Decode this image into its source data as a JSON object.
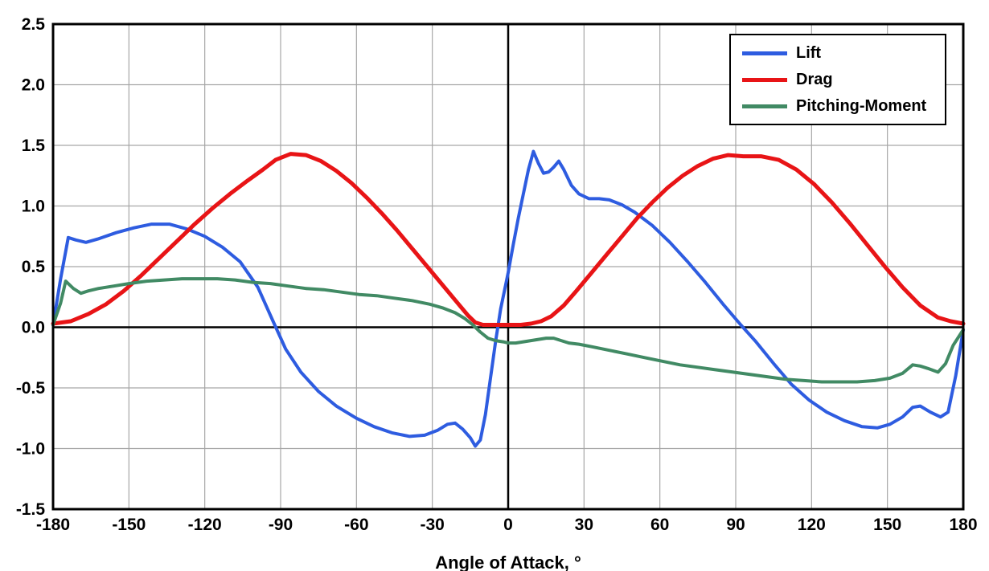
{
  "figure": {
    "background": "#ffffff"
  },
  "colors": {
    "grid": "#a6a6a6",
    "axis": "#000000",
    "border": "#000000",
    "tick_label": "#000000"
  },
  "chart_data": {
    "type": "line",
    "title": "",
    "xlabel": "Angle of Attack, °",
    "ylabel": "",
    "xlim": [
      -180,
      180
    ],
    "ylim": [
      -1.5,
      2.5
    ],
    "grid": true,
    "legend_position": "top-right",
    "zero_axis_lines": true,
    "xticks": [
      -180,
      -150,
      -120,
      -90,
      -60,
      -30,
      0,
      30,
      60,
      90,
      120,
      150,
      180
    ],
    "xtick_labels": [
      "-180",
      "-150",
      "-120",
      "-90",
      "-60",
      "-30",
      "0",
      "30",
      "60",
      "90",
      "120",
      "150",
      "180"
    ],
    "yticks": [
      2.5,
      2.0,
      1.5,
      1.0,
      0.5,
      0.0,
      -0.5,
      -1.0,
      -1.5
    ],
    "ytick_labels": [
      "2.5",
      "2.0",
      "1.5",
      "1.0",
      "0.5",
      "0.0",
      "-0.5",
      "-1.0",
      "-1.5"
    ],
    "series": [
      {
        "name": "Lift",
        "color": "#2e5ce0",
        "line_width": 4,
        "x": [
          -180,
          -177,
          -174,
          -171,
          -167,
          -162,
          -155,
          -148,
          -141,
          -134,
          -127,
          -120,
          -113,
          -106,
          -99,
          -93,
          -88,
          -82,
          -75,
          -68,
          -60,
          -53,
          -46,
          -39,
          -33,
          -28,
          -24,
          -21,
          -18,
          -15,
          -13,
          -11,
          -9,
          -7,
          -5,
          -3,
          -1,
          0,
          2,
          4,
          6,
          8,
          10,
          12,
          14,
          16,
          18,
          20,
          22,
          25,
          28,
          32,
          36,
          40,
          45,
          50,
          57,
          64,
          71,
          78,
          85,
          92,
          98,
          105,
          112,
          119,
          126,
          133,
          140,
          146,
          151,
          156,
          160,
          163,
          167,
          171,
          174,
          177,
          180
        ],
        "y": [
          0.02,
          0.4,
          0.74,
          0.72,
          0.7,
          0.73,
          0.78,
          0.82,
          0.85,
          0.85,
          0.81,
          0.75,
          0.66,
          0.54,
          0.33,
          0.05,
          -0.18,
          -0.37,
          -0.53,
          -0.65,
          -0.75,
          -0.82,
          -0.87,
          -0.9,
          -0.89,
          -0.85,
          -0.8,
          -0.79,
          -0.84,
          -0.91,
          -0.98,
          -0.93,
          -0.72,
          -0.42,
          -0.12,
          0.15,
          0.35,
          0.45,
          0.68,
          0.9,
          1.1,
          1.3,
          1.45,
          1.35,
          1.27,
          1.28,
          1.32,
          1.37,
          1.3,
          1.17,
          1.1,
          1.06,
          1.06,
          1.05,
          1.01,
          0.95,
          0.84,
          0.7,
          0.54,
          0.37,
          0.19,
          0.02,
          -0.12,
          -0.3,
          -0.47,
          -0.6,
          -0.7,
          -0.77,
          -0.82,
          -0.83,
          -0.8,
          -0.74,
          -0.66,
          -0.65,
          -0.7,
          -0.74,
          -0.7,
          -0.4,
          -0.02
        ]
      },
      {
        "name": "Drag",
        "color": "#e81416",
        "line_width": 5,
        "x": [
          -180,
          -173,
          -166,
          -159,
          -152,
          -145,
          -138,
          -131,
          -124,
          -117,
          -110,
          -103,
          -97,
          -92,
          -86,
          -80,
          -74,
          -68,
          -62,
          -56,
          -50,
          -44,
          -38,
          -32,
          -26,
          -20,
          -16,
          -13,
          -10,
          -5,
          0,
          5,
          9,
          13,
          17,
          22,
          27,
          33,
          39,
          45,
          51,
          57,
          63,
          69,
          75,
          81,
          87,
          93,
          100,
          107,
          114,
          121,
          128,
          135,
          142,
          149,
          156,
          163,
          170,
          175,
          180
        ],
        "y": [
          0.03,
          0.05,
          0.11,
          0.19,
          0.3,
          0.43,
          0.57,
          0.71,
          0.85,
          0.98,
          1.1,
          1.21,
          1.3,
          1.38,
          1.43,
          1.42,
          1.37,
          1.29,
          1.19,
          1.07,
          0.94,
          0.8,
          0.65,
          0.5,
          0.35,
          0.2,
          0.1,
          0.04,
          0.02,
          0.02,
          0.02,
          0.02,
          0.03,
          0.05,
          0.09,
          0.18,
          0.3,
          0.45,
          0.6,
          0.75,
          0.9,
          1.03,
          1.15,
          1.25,
          1.33,
          1.39,
          1.42,
          1.41,
          1.41,
          1.38,
          1.3,
          1.18,
          1.03,
          0.86,
          0.68,
          0.5,
          0.33,
          0.18,
          0.08,
          0.05,
          0.03
        ]
      },
      {
        "name": "Pitching-Moment",
        "color": "#418a64",
        "line_width": 4,
        "x": [
          -180,
          -177,
          -175,
          -172,
          -169,
          -166,
          -162,
          -156,
          -150,
          -143,
          -136,
          -129,
          -122,
          -115,
          -108,
          -101,
          -94,
          -87,
          -80,
          -73,
          -66,
          -59,
          -52,
          -45,
          -38,
          -31,
          -26,
          -21,
          -17,
          -14,
          -11,
          -8,
          -5,
          -2,
          0,
          3,
          6,
          9,
          12,
          15,
          18,
          21,
          24,
          28,
          33,
          40,
          47,
          54,
          61,
          68,
          75,
          82,
          89,
          96,
          103,
          110,
          117,
          124,
          131,
          138,
          145,
          151,
          156,
          160,
          163,
          166,
          170,
          173,
          176,
          180
        ],
        "y": [
          0.02,
          0.2,
          0.38,
          0.32,
          0.28,
          0.3,
          0.32,
          0.34,
          0.36,
          0.38,
          0.39,
          0.4,
          0.4,
          0.4,
          0.39,
          0.37,
          0.36,
          0.34,
          0.32,
          0.31,
          0.29,
          0.27,
          0.26,
          0.24,
          0.22,
          0.19,
          0.16,
          0.12,
          0.07,
          0.02,
          -0.04,
          -0.09,
          -0.11,
          -0.12,
          -0.13,
          -0.13,
          -0.12,
          -0.11,
          -0.1,
          -0.09,
          -0.09,
          -0.11,
          -0.13,
          -0.14,
          -0.16,
          -0.19,
          -0.22,
          -0.25,
          -0.28,
          -0.31,
          -0.33,
          -0.35,
          -0.37,
          -0.39,
          -0.41,
          -0.43,
          -0.44,
          -0.45,
          -0.45,
          -0.45,
          -0.44,
          -0.42,
          -0.38,
          -0.31,
          -0.32,
          -0.34,
          -0.37,
          -0.3,
          -0.15,
          -0.02
        ]
      }
    ]
  }
}
